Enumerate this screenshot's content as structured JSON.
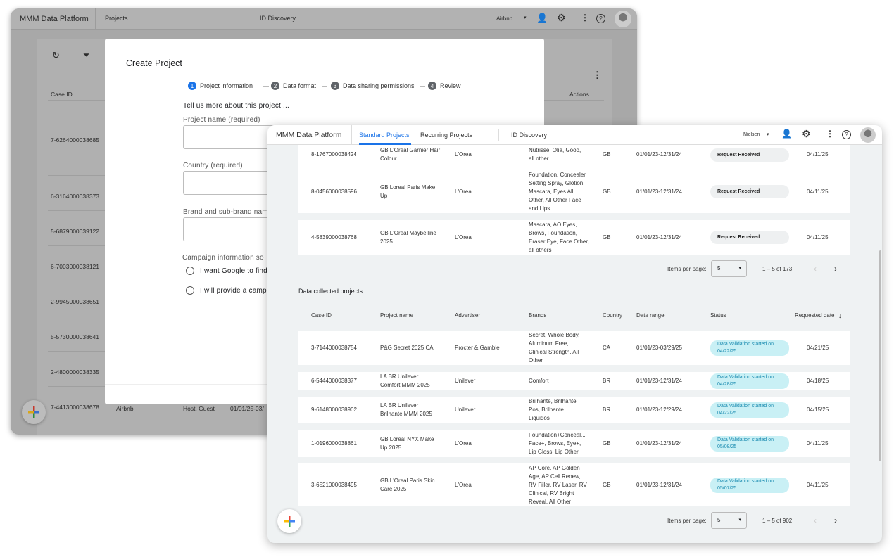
{
  "back": {
    "app_title": "MMM Data Platform",
    "nav_projects": "Projects",
    "nav_id_discovery": "ID Discovery",
    "account": "Airbnb",
    "col_case_id": "Case ID",
    "col_actions": "Actions",
    "case_ids": [
      "7-6264000038685",
      "6-3164000038373",
      "5-6879000039122",
      "6-7003000038121",
      "2-9945000038651",
      "5-5730000038641",
      "2-4800000038335",
      "7-4413000038678"
    ],
    "last_row": {
      "advertiser": "Airbnb",
      "brands": "Host, Guest",
      "date_range": "01/01/25-03/"
    },
    "modal": {
      "title": "Create Project",
      "steps": [
        {
          "n": "1",
          "label": "Project information"
        },
        {
          "n": "2",
          "label": "Data format"
        },
        {
          "n": "3",
          "label": "Data sharing permissions"
        },
        {
          "n": "4",
          "label": "Review"
        }
      ],
      "intro": "Tell us more about this project ...",
      "project_name_label": "Project name (required)",
      "country_label": "Country (required)",
      "brand_label": "Brand and sub-brand nam",
      "campaign_label": "Campaign information so",
      "radio_1": "I want Google to find",
      "radio_2": "I will provide a campa"
    }
  },
  "front": {
    "app_title": "MMM Data Platform",
    "tabs": [
      "Standard Projects",
      "Recurring Projects"
    ],
    "nav_id_discovery": "ID Discovery",
    "account": "Nielsen",
    "accent": "#1a73e8",
    "top_rows": [
      {
        "case_id": "8-1767000038424",
        "project": "GB L'Oreal Garnier Hair\nColour",
        "advertiser": "L'Oreal",
        "brands": "Nutrisse, Olia, Good,\nall other",
        "country": "GB",
        "date_range": "01/01/23-12/31/24",
        "status": "Request Received",
        "requested": "04/11/25"
      },
      {
        "case_id": "8-0456000038596",
        "project": "GB Loreal Paris Make\nUp",
        "advertiser": "L'Oreal",
        "brands": "Foundation, Concealer,\nSetting Spray, Glotion,\nMascara, Eyes All\nOther, All Other Face\nand Lips",
        "country": "GB",
        "date_range": "01/01/23-12/31/24",
        "status": "Request Received",
        "requested": "04/11/25"
      },
      {
        "case_id": "4-5839000038768",
        "project": "GB L'Oreal Maybelline\n2025",
        "advertiser": "L'Oreal",
        "brands": "Mascara, AO Eyes,\nBrows, Foundation,\nEraser Eye, Face Other,\nall others",
        "country": "GB",
        "date_range": "01/01/23-12/31/24",
        "status": "Request Received",
        "requested": "04/11/25"
      }
    ],
    "top_pagination": {
      "label": "Items per page:",
      "value": "5",
      "range": "1 – 5 of 173"
    },
    "section_title": "Data collected projects",
    "columns": [
      "Case ID",
      "Project name",
      "Advertiser",
      "Brands",
      "Country",
      "Date range",
      "Status",
      "Requested date"
    ],
    "rows": [
      {
        "case_id": "3-7144000038754",
        "project": "P&G Secret 2025 CA",
        "advertiser": "Procter & Gamble",
        "brands": "Secret, Whole Body,\nAluminum Free,\nClinical Strength, All\nOther",
        "country": "CA",
        "date_range": "01/01/23-03/29/25",
        "status": "Data Validation started on",
        "status_date": "04/22/25",
        "requested": "04/21/25"
      },
      {
        "case_id": "6-5444000038377",
        "project": "LA BR Unilever\nComfort MMM 2025",
        "advertiser": "Unilever",
        "brands": "Comfort",
        "country": "BR",
        "date_range": "01/01/23-12/31/24",
        "status": "Data Validation started on",
        "status_date": "04/28/25",
        "requested": "04/18/25"
      },
      {
        "case_id": "9-6148000038902",
        "project": "LA BR Unilever\nBrilhante MMM 2025",
        "advertiser": "Unilever",
        "brands": "Brilhante, Brilhante\nPos, Brilhante\nLiquidos",
        "country": "BR",
        "date_range": "01/01/23-12/29/24",
        "status": "Data Validation started on",
        "status_date": "04/22/25",
        "requested": "04/15/25"
      },
      {
        "case_id": "1-0196000038861",
        "project": "GB Loreal NYX Make\nUp 2025",
        "advertiser": "L'Oreal",
        "brands": "Foundation+Conceal...\nFace+, Brows, Eye+,\nLip Gloss, Lip Other",
        "country": "GB",
        "date_range": "01/01/23-12/31/24",
        "status": "Data Validation started on",
        "status_date": "05/08/25",
        "requested": "04/11/25"
      },
      {
        "case_id": "3-6521000038495",
        "project": "GB L'Oreal Paris Skin\nCare 2025",
        "advertiser": "L'Oreal",
        "brands": "AP Core, AP Golden\nAge, AP Cell Renew,\nRV Filler, RV Laser, RV\nClinical, RV Bright\nReveal, All Other",
        "country": "GB",
        "date_range": "01/01/23-12/31/24",
        "status": "Data Validation started on",
        "status_date": "05/07/25",
        "requested": "04/11/25"
      }
    ],
    "bottom_pagination": {
      "label": "Items per page:",
      "value": "5",
      "range": "1 – 5 of 902"
    }
  }
}
